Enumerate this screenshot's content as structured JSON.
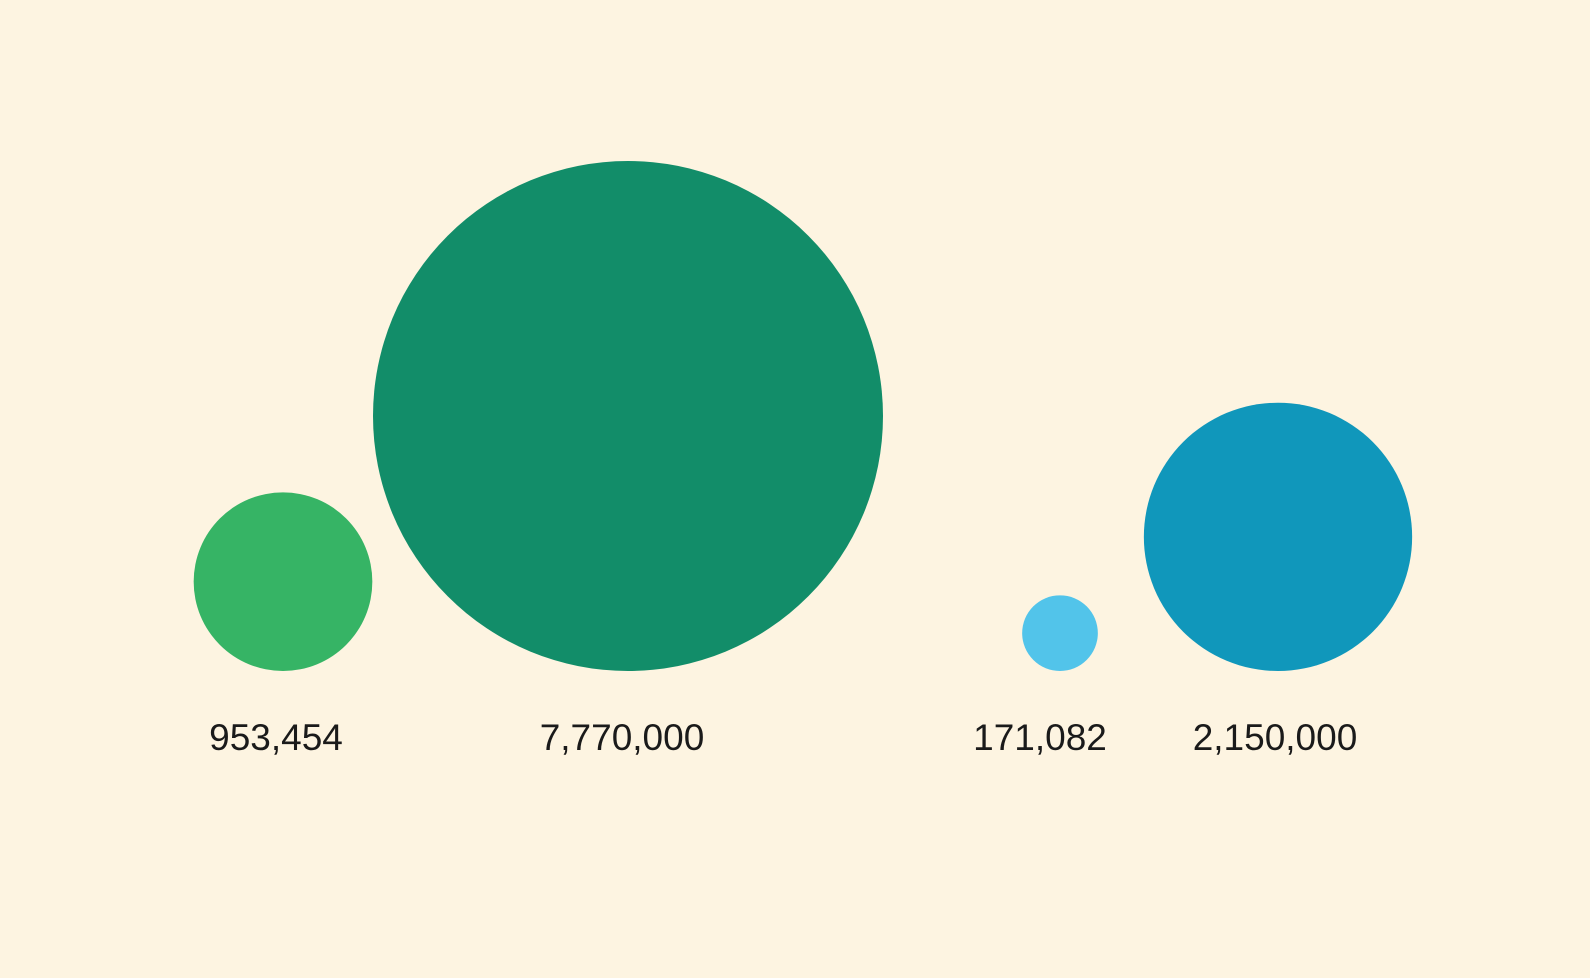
{
  "chart_data": {
    "type": "bubble",
    "title": "",
    "background": "#fdf4e1",
    "categories": [
      "",
      "",
      "",
      ""
    ],
    "values": [
      953454,
      7770000,
      171082,
      2150000
    ],
    "labels": [
      "953,454",
      "7,770,000",
      "171,082",
      "2,150,000"
    ],
    "colors": [
      "#36b465",
      "#128d69",
      "#52c4ea",
      "#1097bb"
    ],
    "size_encoding": "area",
    "legend": "none",
    "grid": false
  }
}
